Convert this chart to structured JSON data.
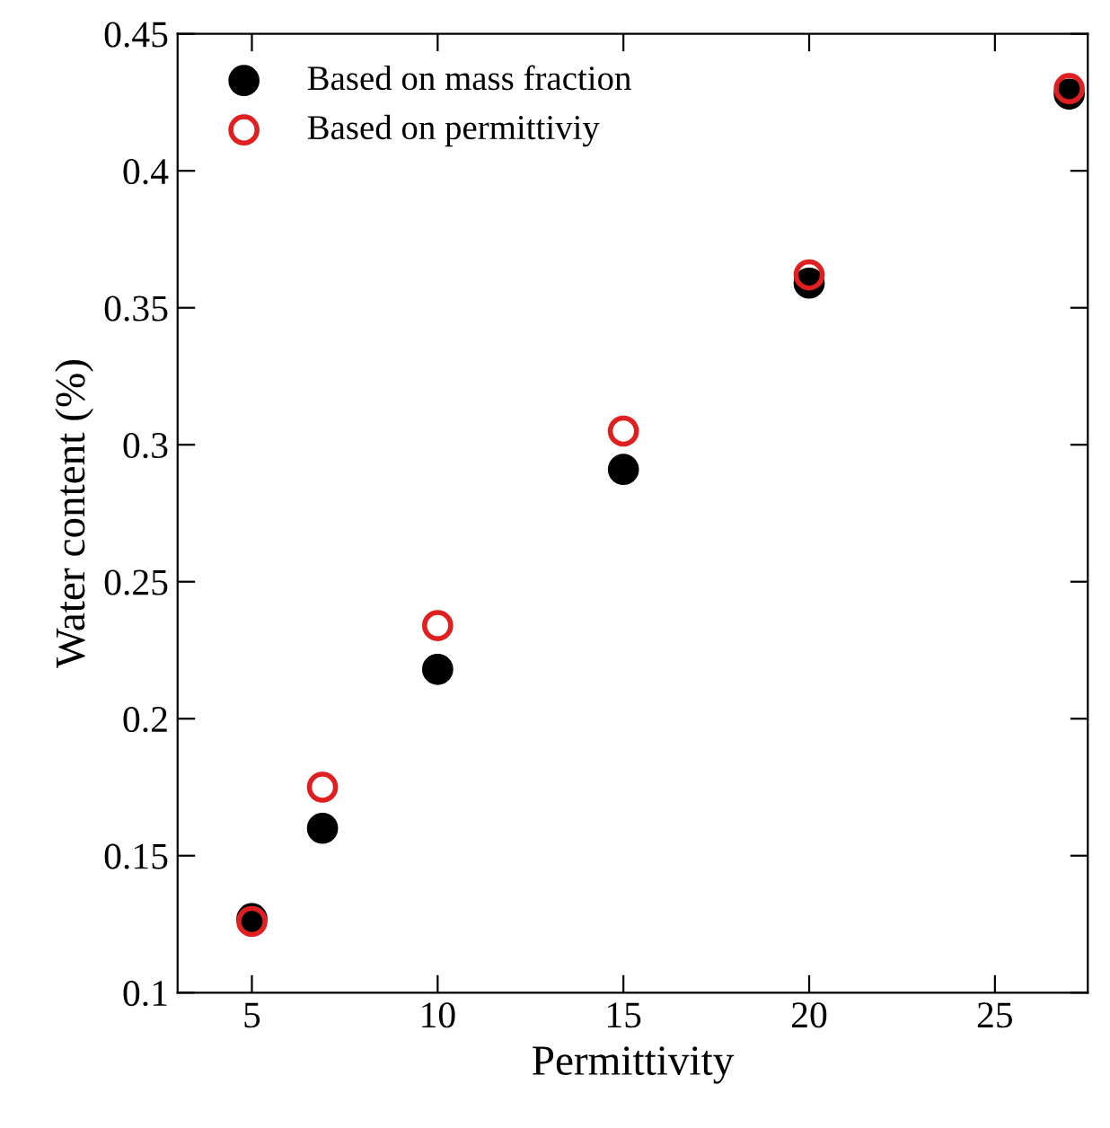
{
  "chart_data": {
    "type": "scatter",
    "xlabel": "Permittivity",
    "ylabel": "Water content (%)",
    "xlim": [
      3,
      27.5
    ],
    "xticks": [
      5,
      10,
      15,
      20,
      25
    ],
    "ylim": [
      0.1,
      0.45
    ],
    "yticks": [
      0.1,
      0.15,
      0.2,
      0.25,
      0.3,
      0.35,
      0.4,
      0.45
    ],
    "grid": false,
    "legend": "top left",
    "marker": "circle",
    "series": [
      {
        "name": "Based on mass fraction",
        "color": "#000000",
        "x": [
          5,
          6.9,
          10,
          15,
          20,
          27
        ],
        "values": [
          0.127,
          0.16,
          0.218,
          0.291,
          0.359,
          0.428
        ]
      },
      {
        "name": "Based on permittiviy",
        "color": "#e02020",
        "x": [
          5,
          6.9,
          10,
          15,
          20,
          27
        ],
        "values": [
          0.126,
          0.175,
          0.234,
          0.305,
          0.362,
          0.43
        ]
      }
    ]
  }
}
